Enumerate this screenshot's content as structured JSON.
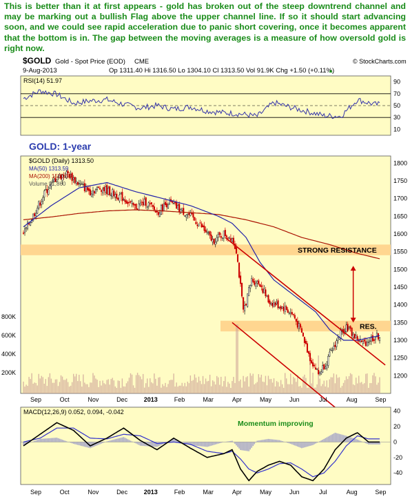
{
  "note": "This is better than it at first appears - gold  has broken out of the steep downtrend channel and may be marking out a bullish Flag above the upper channel line. If so it should start advancing soon, and we could see rapid acceleration due to panic short covering, once it becomes apparent that the bottom is in. The gap between the moving averages is a measure of how oversold gold is right now.",
  "header": {
    "symbol": "$GOLD",
    "desc": "Gold - Spot Price (EOD)",
    "exchange": "CME",
    "credit": "© StockCharts.com",
    "date": "9-Aug-2013",
    "quote": "Op 1311.40  Hi 1316.50  Lo 1304.10  Cl 1313.50  Vol 91.9K  Chg +1.50 (+0.11%)",
    "quote_arrow": "▲"
  },
  "colors": {
    "panel_bg": "#fffcc4",
    "price": "#000000",
    "up": "#1a1a1a",
    "down": "#cc0000",
    "ma50": "#2222aa",
    "ma200": "#aa1100",
    "band": "#ffd690",
    "trend": "#cc0000",
    "rsi": "#3333aa",
    "macd": "#000000",
    "signal": "#3333cc",
    "hist": "#a8a8c8",
    "annotation_green": "#1a8c1a",
    "gold_title": "#2b3cae"
  },
  "chart_data": [
    {
      "type": "line",
      "name": "rsi-panel",
      "label": "RSI(14) 51.97",
      "ylim": [
        0,
        100
      ],
      "ticks": [
        10,
        30,
        50,
        70,
        90
      ],
      "levels": [
        30,
        50,
        70
      ],
      "x": [
        0,
        12,
        24,
        36,
        48,
        60,
        72,
        84,
        96,
        108,
        120,
        132,
        144,
        156,
        168,
        180,
        192,
        204,
        216,
        228,
        240,
        252
      ],
      "values": [
        62,
        75,
        69,
        54,
        58,
        60,
        52,
        46,
        50,
        44,
        48,
        41,
        38,
        36,
        32,
        55,
        47,
        40,
        33,
        32,
        60,
        52
      ]
    },
    {
      "type": "candlestick",
      "name": "price-panel",
      "title": "GOLD: 1-year",
      "legend": [
        "$GOLD (Daily) 1313.50",
        "MA(50) 1313.59",
        "MA(200) 1530.58",
        "Volume 91,860"
      ],
      "ylim": [
        1150,
        1820
      ],
      "ticks": [
        1200,
        1250,
        1300,
        1350,
        1400,
        1450,
        1500,
        1550,
        1600,
        1650,
        1700,
        1750,
        1800
      ],
      "volume_ticks": [
        "200K",
        "400K",
        "600K",
        "800K"
      ],
      "x_labels": [
        "Sep",
        "Oct",
        "Nov",
        "Dec",
        "2013",
        "Feb",
        "Mar",
        "Apr",
        "May",
        "Jun",
        "Jul",
        "Aug",
        "Sep"
      ],
      "close_anchors": {
        "x": [
          0,
          8,
          16,
          24,
          32,
          40,
          48,
          56,
          64,
          72,
          80,
          88,
          96,
          104,
          112,
          120,
          128,
          136,
          144,
          150,
          153,
          158,
          164,
          170,
          176,
          182,
          188,
          194,
          200,
          206,
          212,
          218,
          224,
          228,
          232,
          238,
          244,
          250,
          256
        ],
        "values": [
          1600,
          1660,
          1720,
          1760,
          1770,
          1740,
          1720,
          1730,
          1715,
          1700,
          1675,
          1690,
          1660,
          1690,
          1670,
          1650,
          1620,
          1580,
          1600,
          1590,
          1555,
          1380,
          1470,
          1460,
          1410,
          1400,
          1390,
          1370,
          1320,
          1250,
          1205,
          1240,
          1290,
          1320,
          1340,
          1310,
          1290,
          1305,
          1313
        ]
      },
      "ma50": {
        "x": [
          0,
          20,
          40,
          60,
          80,
          100,
          120,
          140,
          150,
          160,
          170,
          180,
          190,
          200,
          210,
          220,
          230,
          240,
          256
        ],
        "values": [
          1620,
          1680,
          1730,
          1745,
          1720,
          1700,
          1680,
          1650,
          1630,
          1590,
          1520,
          1470,
          1440,
          1410,
          1380,
          1330,
          1300,
          1300,
          1313
        ]
      },
      "ma200": {
        "x": [
          0,
          20,
          40,
          60,
          80,
          100,
          120,
          140,
          160,
          180,
          200,
          220,
          240,
          256
        ],
        "values": [
          1640,
          1648,
          1658,
          1665,
          1668,
          1665,
          1660,
          1655,
          1640,
          1620,
          1590,
          1570,
          1545,
          1530
        ]
      },
      "resistance_band": [
        1540,
        1570
      ],
      "res_band": [
        1325,
        1355
      ],
      "annotations": [
        "STRONG RESISTANCE",
        "RES."
      ],
      "trendlines": [
        {
          "x": [
            145,
            260
          ],
          "values": [
            1590,
            1230
          ]
        },
        {
          "x": [
            150,
            255
          ],
          "values": [
            1350,
            1010
          ]
        }
      ],
      "arrow": {
        "x": 237,
        "from": 1350,
        "to": 1510
      }
    },
    {
      "type": "line",
      "name": "macd-panel",
      "label": "MACD(12,26,9) 0.052, 0.094, -0.042",
      "annotation": "Momentum improving",
      "ylim": [
        -55,
        45
      ],
      "ticks": [
        -40,
        -20,
        0,
        20,
        40
      ],
      "x": [
        0,
        12,
        24,
        36,
        48,
        60,
        72,
        84,
        96,
        108,
        120,
        132,
        144,
        150,
        156,
        162,
        168,
        176,
        184,
        192,
        200,
        208,
        216,
        224,
        232,
        240,
        248
      ],
      "macd": [
        -5,
        10,
        25,
        15,
        -5,
        5,
        18,
        2,
        -10,
        5,
        -8,
        -20,
        -15,
        -10,
        -35,
        -50,
        -38,
        -30,
        -25,
        -30,
        -45,
        -50,
        -35,
        -10,
        5,
        12,
        0
      ],
      "signal": [
        0,
        5,
        18,
        18,
        5,
        4,
        10,
        8,
        -2,
        0,
        -3,
        -12,
        -15,
        -12,
        -22,
        -35,
        -40,
        -35,
        -28,
        -27,
        -35,
        -45,
        -40,
        -25,
        -5,
        8,
        4
      ],
      "x_labels": [
        "Sep",
        "Oct",
        "Nov",
        "Dec",
        "2013",
        "Feb",
        "Mar",
        "Apr",
        "May",
        "Jun",
        "Jul",
        "Aug",
        "Sep"
      ]
    }
  ]
}
